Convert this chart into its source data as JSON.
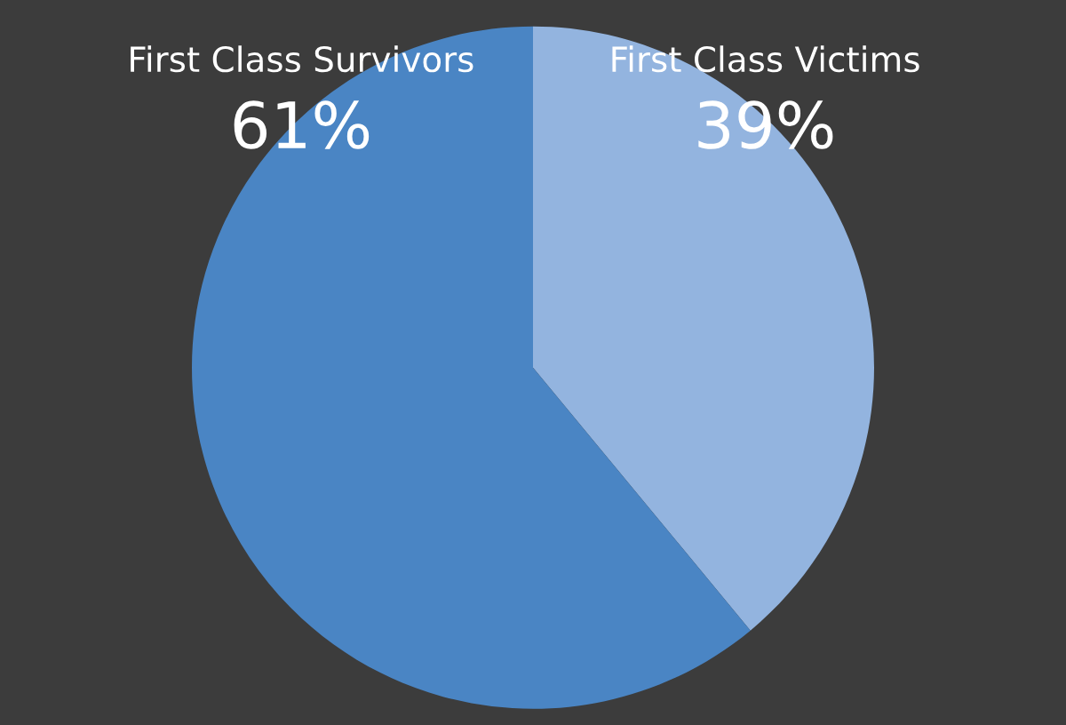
{
  "chart_data": {
    "type": "pie",
    "categories": [
      "First Class Victims",
      "First Class Survivors"
    ],
    "values": [
      39,
      61
    ],
    "colors": [
      "#93b4df",
      "#4a85c4"
    ],
    "value_labels": [
      "39%",
      "61%"
    ]
  }
}
